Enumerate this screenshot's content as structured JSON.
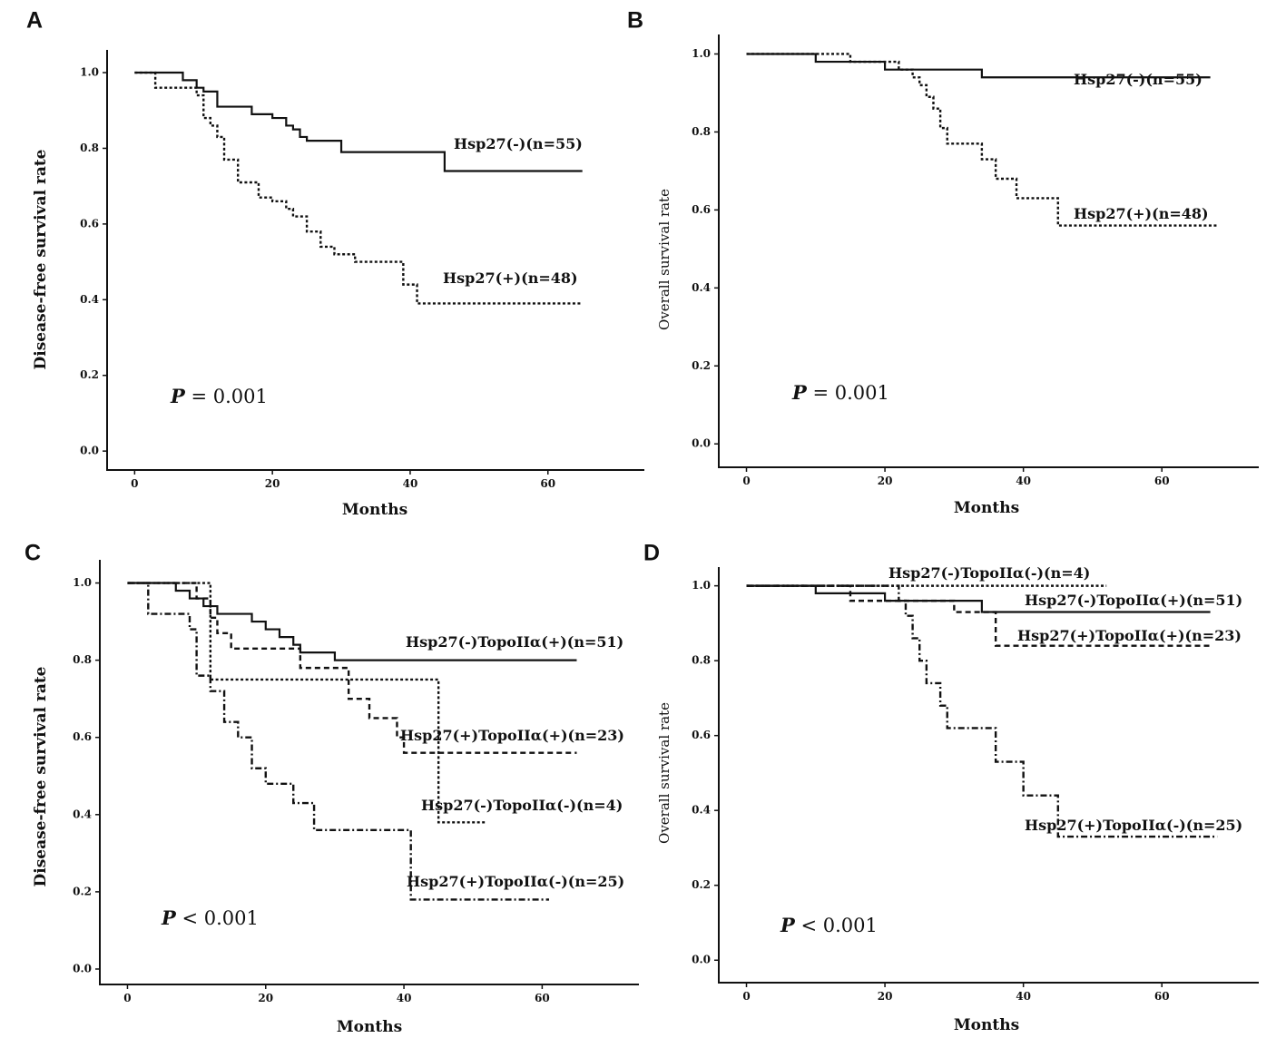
{
  "chart_data": [
    {
      "id": "A",
      "panel_label": "A",
      "type": "line",
      "subtype": "kaplan-meier",
      "xlabel": "Months",
      "ylabel": "Disease-free survival rate",
      "xlim": [
        -4,
        74
      ],
      "ylim": [
        -0.05,
        1.06
      ],
      "xticks": [
        0,
        20,
        40,
        60
      ],
      "xtick_labels": [
        "0",
        "20",
        "40",
        "60"
      ],
      "yticks": [
        0.0,
        0.2,
        0.4,
        0.6,
        0.8,
        1.0
      ],
      "ytick_labels": [
        "0.0",
        "0.2",
        "0.4",
        "0.6",
        "0.8",
        "1.0"
      ],
      "p_prefix": "P",
      "p_suffix": " = 0.001",
      "series": [
        {
          "name": "Hsp27(-)(n=55)",
          "style": "solid",
          "steps": [
            [
              0,
              1.0
            ],
            [
              7,
              0.98
            ],
            [
              9,
              0.96
            ],
            [
              10,
              0.95
            ],
            [
              12,
              0.91
            ],
            [
              16,
              0.91
            ],
            [
              17,
              0.89
            ],
            [
              20,
              0.88
            ],
            [
              22,
              0.86
            ],
            [
              23,
              0.85
            ],
            [
              24,
              0.83
            ],
            [
              25,
              0.82
            ],
            [
              30,
              0.79
            ],
            [
              45,
              0.74
            ],
            [
              65,
              0.74
            ]
          ]
        },
        {
          "name": "Hsp27(+)(n=48)",
          "style": "dotted",
          "steps": [
            [
              0,
              1.0
            ],
            [
              3,
              0.96
            ],
            [
              9,
              0.94
            ],
            [
              10,
              0.88
            ],
            [
              11,
              0.86
            ],
            [
              12,
              0.83
            ],
            [
              13,
              0.77
            ],
            [
              15,
              0.71
            ],
            [
              18,
              0.67
            ],
            [
              20,
              0.66
            ],
            [
              22,
              0.64
            ],
            [
              23,
              0.62
            ],
            [
              25,
              0.58
            ],
            [
              27,
              0.54
            ],
            [
              29,
              0.52
            ],
            [
              32,
              0.5
            ],
            [
              39,
              0.44
            ],
            [
              41,
              0.39
            ],
            [
              65,
              0.39
            ]
          ]
        }
      ]
    },
    {
      "id": "B",
      "panel_label": "B",
      "type": "line",
      "subtype": "kaplan-meier",
      "xlabel": "Months",
      "ylabel": "Overall survival rate",
      "xlim": [
        -4,
        74
      ],
      "ylim": [
        -0.06,
        1.05
      ],
      "xticks": [
        0,
        20,
        40,
        60
      ],
      "xtick_labels": [
        "0",
        "20",
        "40",
        "60"
      ],
      "yticks": [
        0.0,
        0.2,
        0.4,
        0.6,
        0.8,
        1.0
      ],
      "ytick_labels": [
        "0.0",
        "0.2",
        "0.4",
        "0.6",
        "0.8",
        "1.0"
      ],
      "p_prefix": "P",
      "p_suffix": " = 0.001",
      "series": [
        {
          "name": "Hsp27(-)(n=55)",
          "style": "solid",
          "steps": [
            [
              0,
              1.0
            ],
            [
              10,
              0.98
            ],
            [
              20,
              0.96
            ],
            [
              34,
              0.94
            ],
            [
              67,
              0.94
            ]
          ]
        },
        {
          "name": "Hsp27(+)(n=48)",
          "style": "dotted",
          "steps": [
            [
              0,
              1.0
            ],
            [
              15,
              0.98
            ],
            [
              22,
              0.96
            ],
            [
              24,
              0.94
            ],
            [
              25,
              0.92
            ],
            [
              26,
              0.89
            ],
            [
              27,
              0.86
            ],
            [
              28,
              0.81
            ],
            [
              29,
              0.77
            ],
            [
              34,
              0.73
            ],
            [
              36,
              0.68
            ],
            [
              39,
              0.63
            ],
            [
              45,
              0.56
            ],
            [
              68,
              0.56
            ]
          ]
        }
      ]
    },
    {
      "id": "C",
      "panel_label": "C",
      "type": "line",
      "subtype": "kaplan-meier",
      "xlabel": "Months",
      "ylabel": "Disease-free survival rate",
      "xlim": [
        -4,
        74
      ],
      "ylim": [
        -0.04,
        1.06
      ],
      "xticks": [
        0,
        20,
        40,
        60
      ],
      "xtick_labels": [
        "0",
        "20",
        "40",
        "60"
      ],
      "yticks": [
        0.0,
        0.2,
        0.4,
        0.6,
        0.8,
        1.0
      ],
      "ytick_labels": [
        "0.0",
        "0.2",
        "0.4",
        "0.6",
        "0.8",
        "1.0"
      ],
      "p_prefix": "P",
      "p_suffix": " < 0.001",
      "series": [
        {
          "name": "Hsp27(-)TopoIIα(+)(n=51)",
          "style": "solid",
          "steps": [
            [
              0,
              1.0
            ],
            [
              7,
              0.98
            ],
            [
              9,
              0.96
            ],
            [
              11,
              0.94
            ],
            [
              13,
              0.92
            ],
            [
              18,
              0.9
            ],
            [
              20,
              0.88
            ],
            [
              22,
              0.86
            ],
            [
              24,
              0.84
            ],
            [
              25,
              0.82
            ],
            [
              30,
              0.8
            ],
            [
              65,
              0.8
            ]
          ]
        },
        {
          "name": "Hsp27(+)TopoIIα(+)(n=23)",
          "style": "dashed",
          "steps": [
            [
              0,
              1.0
            ],
            [
              10,
              0.96
            ],
            [
              12,
              0.91
            ],
            [
              13,
              0.87
            ],
            [
              15,
              0.83
            ],
            [
              25,
              0.78
            ],
            [
              32,
              0.7
            ],
            [
              35,
              0.65
            ],
            [
              39,
              0.6
            ],
            [
              40,
              0.56
            ],
            [
              65,
              0.56
            ]
          ]
        },
        {
          "name": "Hsp27(-)TopoIIα(-)(n=4)",
          "style": "dotted",
          "steps": [
            [
              0,
              1.0
            ],
            [
              12,
              0.75
            ],
            [
              45,
              0.38
            ],
            [
              52,
              0.38
            ]
          ]
        },
        {
          "name": "Hsp27(+)TopoIIα(-)(n=25)",
          "style": "dashdot",
          "steps": [
            [
              0,
              1.0
            ],
            [
              3,
              0.92
            ],
            [
              9,
              0.88
            ],
            [
              10,
              0.76
            ],
            [
              12,
              0.72
            ],
            [
              14,
              0.64
            ],
            [
              16,
              0.6
            ],
            [
              18,
              0.52
            ],
            [
              20,
              0.48
            ],
            [
              24,
              0.43
            ],
            [
              27,
              0.36
            ],
            [
              41,
              0.18
            ],
            [
              61,
              0.18
            ]
          ]
        }
      ]
    },
    {
      "id": "D",
      "panel_label": "D",
      "type": "line",
      "subtype": "kaplan-meier",
      "xlabel": "Months",
      "ylabel": "Overall survival rate",
      "xlim": [
        -4,
        74
      ],
      "ylim": [
        -0.06,
        1.05
      ],
      "xticks": [
        0,
        20,
        40,
        60
      ],
      "xtick_labels": [
        "0",
        "20",
        "40",
        "60"
      ],
      "yticks": [
        0.0,
        0.2,
        0.4,
        0.6,
        0.8,
        1.0
      ],
      "ytick_labels": [
        "0.0",
        "0.2",
        "0.4",
        "0.6",
        "0.8",
        "1.0"
      ],
      "p_prefix": "P",
      "p_suffix": " < 0.001",
      "series": [
        {
          "name": "Hsp27(-)TopoIIα(-)(n=4)",
          "style": "dotted",
          "steps": [
            [
              0,
              1.0
            ],
            [
              52,
              1.0
            ]
          ]
        },
        {
          "name": "Hsp27(-)TopoIIα(+)(n=51)",
          "style": "solid",
          "steps": [
            [
              0,
              1.0
            ],
            [
              10,
              0.98
            ],
            [
              20,
              0.96
            ],
            [
              34,
              0.93
            ],
            [
              67,
              0.93
            ]
          ]
        },
        {
          "name": "Hsp27(+)TopoIIα(+)(n=23)",
          "style": "dashed",
          "steps": [
            [
              0,
              1.0
            ],
            [
              15,
              0.96
            ],
            [
              30,
              0.93
            ],
            [
              36,
              0.84
            ],
            [
              67,
              0.84
            ]
          ]
        },
        {
          "name": "Hsp27(+)TopoIIα(-)(n=25)",
          "style": "dashdot",
          "steps": [
            [
              0,
              1.0
            ],
            [
              22,
              0.96
            ],
            [
              23,
              0.92
            ],
            [
              24,
              0.86
            ],
            [
              25,
              0.8
            ],
            [
              26,
              0.74
            ],
            [
              28,
              0.68
            ],
            [
              29,
              0.62
            ],
            [
              36,
              0.53
            ],
            [
              40,
              0.44
            ],
            [
              45,
              0.33
            ],
            [
              68,
              0.33
            ]
          ]
        }
      ]
    }
  ]
}
